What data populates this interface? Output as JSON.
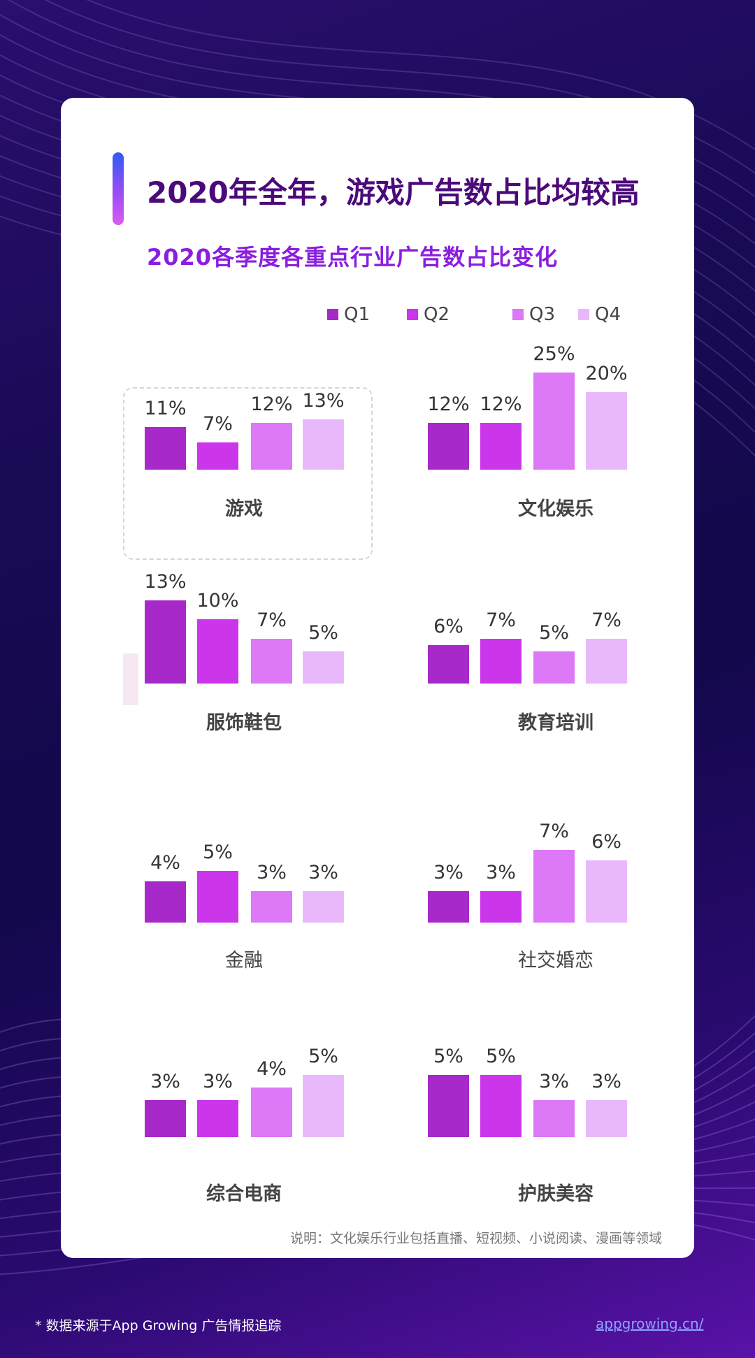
{
  "header": {
    "title": "2020年全年，游戏广告数占比均较高",
    "subtitle": "2020各季度各重点行业广告数占比变化"
  },
  "colors": {
    "Q1": "#a829c9",
    "Q2": "#cc36ea",
    "Q3": "#dd78f7",
    "Q4": "#e9b8fa",
    "title": "#4b0a7a",
    "subtitle": "#8a1ee0"
  },
  "chart_data": {
    "type": "bar",
    "series_names": [
      "Q1",
      "Q2",
      "Q3",
      "Q4"
    ],
    "legend": "top-right",
    "value_suffix": "%",
    "panels": [
      {
        "category": "游戏",
        "values": [
          11,
          7,
          12,
          13
        ],
        "highlighted": true
      },
      {
        "category": "文化娱乐",
        "values": [
          12,
          12,
          25,
          20
        ]
      },
      {
        "category": "服饰鞋包",
        "values": [
          13,
          10,
          7,
          5
        ]
      },
      {
        "category": "教育培训",
        "values": [
          6,
          7,
          5,
          7
        ]
      },
      {
        "category": "金融",
        "values": [
          4,
          5,
          3,
          3
        ]
      },
      {
        "category": "社交婚恋",
        "values": [
          3,
          3,
          7,
          6
        ]
      },
      {
        "category": "综合电商",
        "values": [
          3,
          3,
          4,
          5
        ]
      },
      {
        "category": "护肤美容",
        "values": [
          5,
          5,
          3,
          3
        ]
      }
    ]
  },
  "note": "说明：文化娱乐行业包括直播、短视频、小说阅读、漫画等领域",
  "footer": {
    "source": "* 数据来源于App Growing 广告情报追踪",
    "link": "appgrowing.cn/"
  }
}
